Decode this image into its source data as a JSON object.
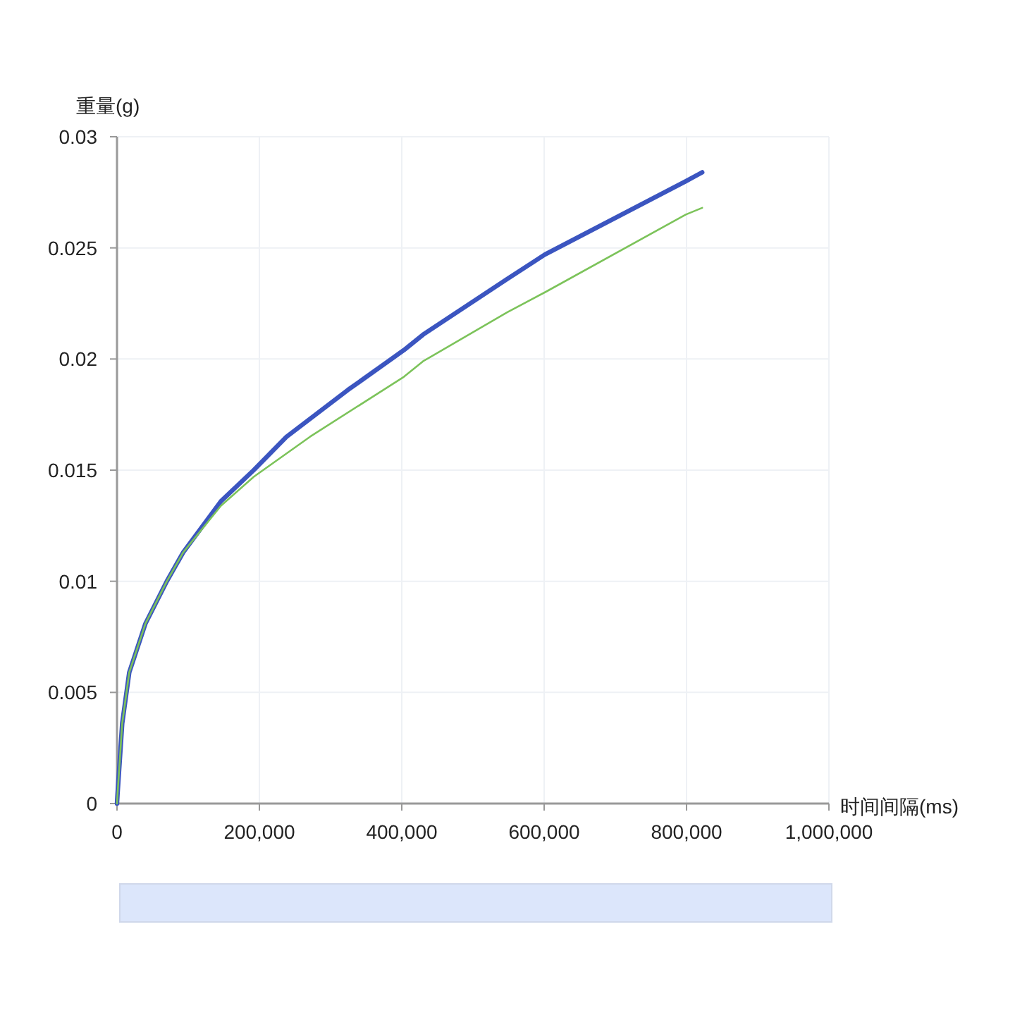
{
  "chart_data": {
    "type": "line",
    "xlabel": "时间间隔(ms)",
    "ylabel": "重量(g)",
    "xlim": [
      0,
      1000000
    ],
    "ylim": [
      0,
      0.03
    ],
    "xticks": [
      0,
      {
        "value": 200000,
        "label": "200,000"
      },
      {
        "value": 400000,
        "label": "400,000"
      },
      {
        "value": 600000,
        "label": "600,000"
      },
      {
        "value": 800000,
        "label": "800,000"
      },
      {
        "value": 1000000,
        "label": "1,000,000"
      }
    ],
    "yticks": [
      0,
      0.005,
      0.01,
      0.015,
      0.02,
      0.025,
      0.03
    ],
    "grid": true,
    "line_style": "solid",
    "series": [
      {
        "color": "#3b55c0",
        "x": [
          0,
          700,
          7300,
          17200,
          40000,
          70000,
          93000,
          146000,
          192000,
          238000,
          324000,
          403000,
          430000,
          548000,
          601000,
          799000,
          822000
        ],
        "values": [
          0,
          0.0004,
          0.0036,
          0.0059,
          0.0081,
          0.01,
          0.0113,
          0.0136,
          0.015,
          0.0165,
          0.0186,
          0.0204,
          0.0211,
          0.0236,
          0.0247,
          0.028,
          0.0284
        ]
      },
      {
        "color": "#7cc35a",
        "x": [
          0,
          700,
          7300,
          17200,
          40000,
          70000,
          93000,
          146000,
          192000,
          271000,
          403000,
          430000,
          548000,
          601000,
          799000,
          822000
        ],
        "values": [
          0,
          0.0004,
          0.0036,
          0.0059,
          0.0081,
          0.01,
          0.0113,
          0.0134,
          0.0147,
          0.0165,
          0.0192,
          0.0199,
          0.0221,
          0.023,
          0.0265,
          0.0268
        ]
      }
    ]
  }
}
